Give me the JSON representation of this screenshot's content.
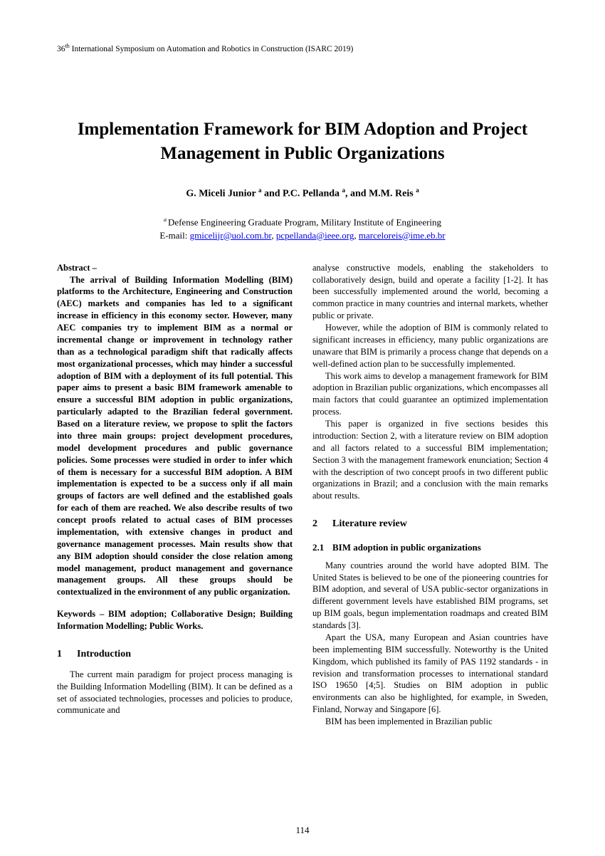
{
  "header": {
    "text_prefix": "36",
    "text_suffix": " International Symposium on Automation and Robotics in Construction (ISARC 2019)",
    "sup": "th"
  },
  "title": "Implementation Framework for BIM Adoption and Project Management in Public Organizations",
  "authors": {
    "a1_name": "G. Miceli Junior ",
    "a1_sup": "a",
    "sep1": " and ",
    "a2_name": "P.C. Pellanda ",
    "a2_sup": "a",
    "sep2": ", and ",
    "a3_name": "M.M. Reis ",
    "a3_sup": "a"
  },
  "affiliation": {
    "sup": "a ",
    "line1": "Defense Engineering Graduate Program, Military Institute of Engineering",
    "email_prefix": "E-mail: ",
    "email1": "gmicelijr@uol.com.br",
    "comma1": ", ",
    "email2": "pcpellanda@ieee.org",
    "comma2": ", ",
    "email3": "marceloreis@ime.eb.br"
  },
  "abstract": {
    "label": "Abstract –",
    "body": "The arrival of Building Information Modelling (BIM) platforms to the Architecture, Engineering and Construction (AEC) markets and companies has led to a significant increase in efficiency in this economy sector. However, many AEC companies try to implement BIM as a normal or incremental change or improvement in technology rather than as a technological paradigm shift that radically affects most organizational processes, which may hinder a successful adoption of BIM with a deployment of its full potential. This paper aims to present a basic BIM framework amenable to ensure a successful BIM adoption in public organizations, particularly adapted to the Brazilian federal government. Based on a literature review, we propose to split the factors into three main groups: project development procedures, model development procedures and public governance policies. Some processes were studied in order to infer which of them is necessary for a successful BIM adoption. A BIM implementation is expected to be a success only if all main groups of factors are well defined and the established goals for each of them are reached. We also describe results of two concept proofs related to actual cases of BIM processes implementation, with extensive changes in product and governance management processes. Main results show that any BIM adoption should consider the close relation among model management, product management and governance management groups. All these groups should be contextualized in the environment of any public organization."
  },
  "keywords": "Keywords – BIM adoption; Collaborative Design; Building Information Modelling; Public Works.",
  "section1": {
    "num": "1",
    "title": "Introduction",
    "p1": "The current main paradigm for project process managing is the Building Information Modelling (BIM). It can be defined as a set of associated technologies, processes and policies to produce, communicate and"
  },
  "col2": {
    "p1": "analyse constructive models, enabling the stakeholders to collaboratively design, build and operate a facility [1-2]. It has been successfully implemented around the world, becoming a common practice in many countries and internal markets, whether public or private.",
    "p2": "However, while the adoption of BIM is commonly related to significant increases in efficiency, many public organizations are unaware that BIM is primarily a process change that depends on a well-defined action plan to be successfully implemented.",
    "p3": "This work aims to develop a management framework for BIM adoption in Brazilian public organizations, which encompasses all main factors that could guarantee an optimized implementation process.",
    "p4": "This paper is organized in five sections besides this introduction: Section 2, with a literature review on BIM adoption and all factors related to a successful BIM implementation; Section 3 with the management framework enunciation; Section 4 with the description of two concept proofs in two different public organizations in Brazil; and a conclusion with the main remarks about results."
  },
  "section2": {
    "num": "2",
    "title": "Literature review"
  },
  "section2_1": {
    "num": "2.1",
    "title": "BIM adoption in public organizations",
    "p1": "Many countries around the world have adopted BIM. The United States is believed to be one of the pioneering countries for BIM adoption, and several of USA public-sector organizations in different government levels have established BIM programs, set up BIM goals, begun implementation roadmaps and created BIM standards [3].",
    "p2": "Apart the USA, many European and Asian countries have been implementing BIM successfully. Noteworthy is the United Kingdom, which published its family of PAS 1192 standards - in revision and transformation processes to international standard ISO 19650 [4;5]. Studies on BIM adoption in public environments can also be highlighted, for example, in Sweden, Finland, Norway and Singapore [6].",
    "p3": "BIM has been implemented in Brazilian public"
  },
  "page_number": "114"
}
